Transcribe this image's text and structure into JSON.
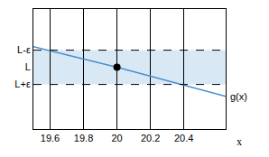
{
  "chart_data": {
    "type": "line",
    "x": [
      19.5,
      20,
      20.65
    ],
    "series": [
      {
        "name": "g(x)",
        "color": "#4a8fcc",
        "values": [
          1.2,
          0,
          -1.7
        ]
      }
    ],
    "point": {
      "x": 20,
      "y": 0
    },
    "band": [
      -1,
      1
    ],
    "xlabel": "x",
    "xlim": [
      19.5,
      20.65
    ],
    "xticks": [
      19.6,
      19.8,
      20,
      20.2,
      20.4
    ],
    "ylim": [
      -3.6,
      3.4
    ],
    "yticks": [
      {
        "value": 1,
        "label": "L-ε"
      },
      {
        "value": 0,
        "label": "L"
      },
      {
        "value": -1,
        "label": "L+ε"
      }
    ],
    "grid": true
  }
}
